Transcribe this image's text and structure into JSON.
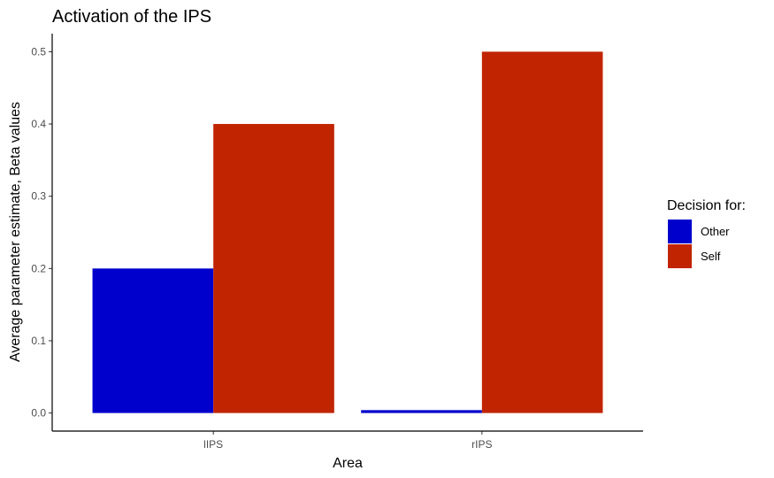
{
  "chart_data": {
    "type": "bar",
    "title": "Activation of the IPS",
    "xlabel": "Area",
    "ylabel": "Average parameter estimate, Beta values",
    "categories": [
      "lIPS",
      "rIPS"
    ],
    "series": [
      {
        "name": "Other",
        "values": [
          0.2,
          0.004
        ],
        "color": "#0000CC"
      },
      {
        "name": "Self",
        "values": [
          0.4,
          0.5
        ],
        "color": "#C12400"
      }
    ],
    "ylim": [
      -0.025,
      0.525
    ],
    "yticks": [
      0.0,
      0.1,
      0.2,
      0.3,
      0.4,
      0.5
    ],
    "ytick_labels": [
      "0.0",
      "0.1",
      "0.2",
      "0.3",
      "0.4",
      "0.5"
    ],
    "grid": false,
    "legend": {
      "title": "Decision for:",
      "position": "right"
    }
  }
}
